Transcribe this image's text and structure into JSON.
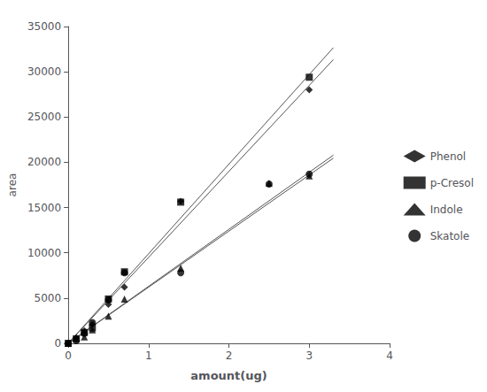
{
  "chart_data": {
    "type": "scatter",
    "xlabel": "amount(ug)",
    "ylabel": "area",
    "xlim": [
      0,
      4
    ],
    "ylim": [
      0,
      35000
    ],
    "xticks": [
      0,
      1,
      2,
      3,
      4
    ],
    "yticks": [
      0,
      5000,
      10000,
      15000,
      20000,
      25000,
      30000,
      35000
    ],
    "grid": false,
    "legend": "right",
    "color": "#000000",
    "series": [
      {
        "name": "Phenol",
        "marker": "diamond",
        "x": [
          0.0,
          0.1,
          0.2,
          0.3,
          0.5,
          0.7,
          1.4,
          3.0
        ],
        "values": [
          0,
          600,
          1400,
          2100,
          4300,
          6200,
          15700,
          28000
        ],
        "trend": {
          "type": "line",
          "color": "#555555",
          "x": [
            0.0,
            3.3
          ],
          "values": [
            0,
            31350
          ]
        }
      },
      {
        "name": "p-Cresol",
        "marker": "square",
        "x": [
          0.0,
          0.1,
          0.2,
          0.3,
          0.5,
          0.7,
          1.4,
          3.0
        ],
        "values": [
          0,
          500,
          1200,
          1700,
          4900,
          7900,
          15600,
          29400
        ],
        "trend": {
          "type": "line",
          "color": "#555555",
          "x": [
            0.0,
            3.3
          ],
          "values": [
            0,
            32670
          ]
        }
      },
      {
        "name": "Indole",
        "marker": "triangle",
        "x": [
          0.0,
          0.2,
          0.3,
          0.5,
          0.7,
          1.4,
          2.5,
          3.0
        ],
        "values": [
          0,
          700,
          1500,
          3000,
          4900,
          8300,
          17700,
          18500
        ],
        "trend": {
          "type": "line",
          "color": "#555555",
          "x": [
            0.0,
            3.3
          ],
          "values": [
            0,
            20460
          ]
        }
      },
      {
        "name": "Skatole",
        "marker": "circle",
        "x": [
          0.0,
          0.1,
          0.2,
          0.3,
          0.5,
          0.7,
          1.4,
          2.5,
          3.0
        ],
        "values": [
          0,
          300,
          1100,
          2300,
          4800,
          7800,
          7800,
          17600,
          18700
        ],
        "trend": {
          "type": "line",
          "color": "#555555",
          "x": [
            0.0,
            3.3
          ],
          "values": [
            0,
            20790
          ]
        }
      }
    ]
  }
}
